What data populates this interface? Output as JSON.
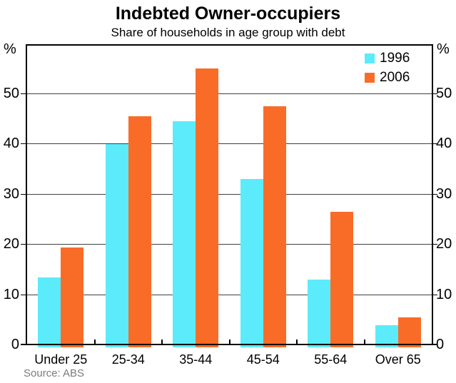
{
  "header": {
    "title": "Indebted Owner-occupiers",
    "subtitle": "Share of households in age group with debt"
  },
  "chart_data": {
    "type": "bar",
    "categories": [
      "Under 25",
      "25-34",
      "35-44",
      "45-54",
      "55-64",
      "Over 65"
    ],
    "series": [
      {
        "name": "1996",
        "color": "#5CEBFA",
        "values": [
          13.5,
          40,
          44.5,
          33,
          13,
          4
        ]
      },
      {
        "name": "2006",
        "color": "#F96C28",
        "values": [
          19.5,
          45.5,
          55,
          47.5,
          26.5,
          5.5
        ]
      }
    ],
    "title": "Indebted Owner-occupiers",
    "subtitle": "Share of households in age group with debt",
    "xlabel": "",
    "ylabel_left": "%",
    "ylabel_right": "%",
    "yticks": [
      0,
      10,
      20,
      30,
      40,
      50
    ],
    "ylim": [
      0,
      60
    ],
    "grid": true,
    "gridline_color": "#3f3f3f",
    "legend_position": "top-right"
  },
  "footer": {
    "source": "Source: ABS"
  }
}
